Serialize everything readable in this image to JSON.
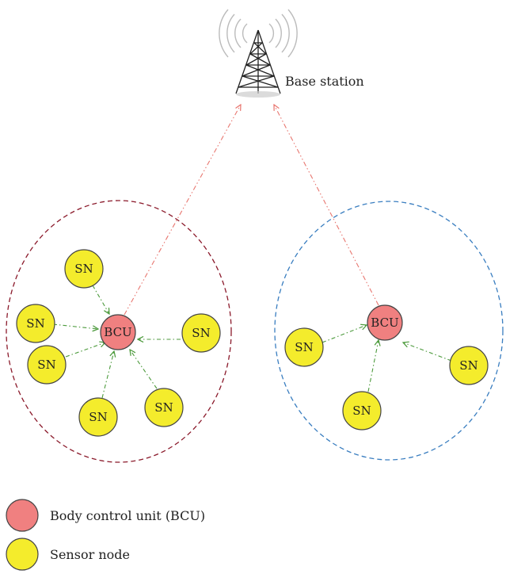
{
  "base_station": {
    "label": "Base station"
  },
  "node_labels": {
    "bcu": "BCU",
    "sn": "SN"
  },
  "legend": {
    "bcu_label": "Body control unit (BCU)",
    "sn_label": "Sensor node"
  },
  "colors": {
    "bcu_fill": "#f08080",
    "sn_fill": "#f4ec2c",
    "node_stroke": "#444444",
    "cluster_left_border": "#8b1a2b",
    "cluster_right_border": "#3a7ec0",
    "uplink_arrow": "#e8766f",
    "sensor_arrow": "#4c9a3c"
  }
}
